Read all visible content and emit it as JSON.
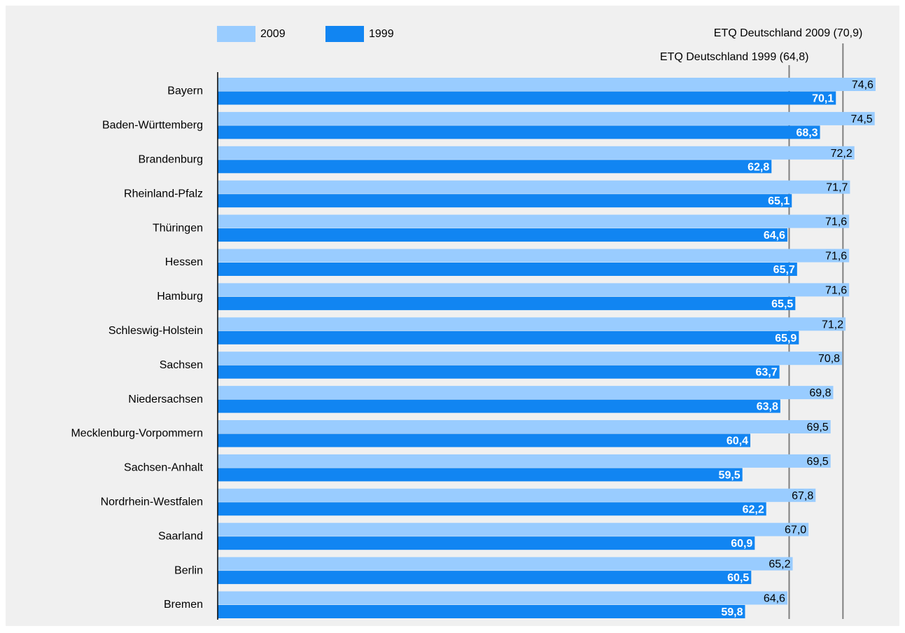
{
  "chart_data": {
    "type": "bar",
    "orientation": "horizontal",
    "categories": [
      "Bayern",
      "Baden-Württemberg",
      "Brandenburg",
      "Rheinland-Pfalz",
      "Thüringen",
      "Hessen",
      "Hamburg",
      "Schleswig-Holstein",
      "Sachsen",
      "Niedersachsen",
      "Mecklenburg-Vorpommern",
      "Sachsen-Anhalt",
      "Nordrhein-Westfalen",
      "Saarland",
      "Berlin",
      "Bremen"
    ],
    "series": [
      {
        "name": "2009",
        "color": "#99ccff",
        "values": [
          74.6,
          74.5,
          72.2,
          71.7,
          71.6,
          71.6,
          71.6,
          71.2,
          70.8,
          69.8,
          69.5,
          69.5,
          67.8,
          67.0,
          65.2,
          64.6
        ],
        "value_labels": [
          "74,6",
          "74,5",
          "72,2",
          "71,7",
          "71,6",
          "71,6",
          "71,6",
          "71,2",
          "70,8",
          "69,8",
          "69,5",
          "69,5",
          "67,8",
          "67,0",
          "65,2",
          "64,6"
        ]
      },
      {
        "name": "1999",
        "color": "#1185f2",
        "values": [
          70.1,
          68.3,
          62.8,
          65.1,
          64.6,
          65.7,
          65.5,
          65.9,
          63.7,
          63.8,
          60.4,
          59.5,
          62.2,
          60.9,
          60.5,
          59.8
        ],
        "value_labels": [
          "70,1",
          "68,3",
          "62,8",
          "65,1",
          "64,6",
          "65,7",
          "65,5",
          "65,9",
          "63,7",
          "63,8",
          "60,4",
          "59,5",
          "62,2",
          "60,9",
          "60,5",
          "59,8"
        ]
      }
    ],
    "xlim": [
      0,
      78
    ],
    "reference_lines": [
      {
        "label": "ETQ Deutschland 2009 (70,9)",
        "value": 70.9
      },
      {
        "label": "ETQ Deutschland 1999 (64,8)",
        "value": 64.8
      }
    ]
  }
}
